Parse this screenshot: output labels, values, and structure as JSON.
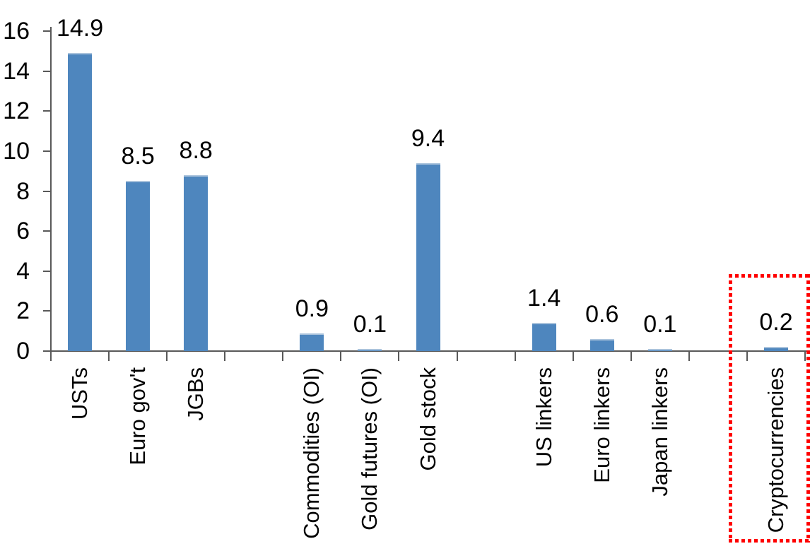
{
  "chart_data": {
    "type": "bar",
    "title": "",
    "xlabel": "",
    "ylabel": "",
    "y_axis": {
      "min": 0,
      "max": 16,
      "tick_step": 2,
      "ticks": [
        16,
        14,
        12,
        10,
        8,
        6,
        4,
        2,
        0
      ]
    },
    "slots_total": 13,
    "grid": "off",
    "legend": "none",
    "bars": [
      {
        "label": "USTs",
        "value": 14.9,
        "slot": 0,
        "highlighted": false
      },
      {
        "label": "Euro gov't",
        "value": 8.5,
        "slot": 1,
        "highlighted": false
      },
      {
        "label": "JGBs",
        "value": 8.8,
        "slot": 2,
        "highlighted": false
      },
      {
        "label": "Commodities (OI)",
        "value": 0.9,
        "slot": 4,
        "highlighted": false
      },
      {
        "label": "Gold futures (OI)",
        "value": 0.1,
        "slot": 5,
        "highlighted": false
      },
      {
        "label": "Gold stock",
        "value": 9.4,
        "slot": 6,
        "highlighted": false
      },
      {
        "label": "US linkers",
        "value": 1.4,
        "slot": 8,
        "highlighted": false
      },
      {
        "label": "Euro linkers",
        "value": 0.6,
        "slot": 9,
        "highlighted": false
      },
      {
        "label": "Japan linkers",
        "value": 0.1,
        "slot": 10,
        "highlighted": false
      },
      {
        "label": "Cryptocurrencies",
        "value": 0.2,
        "slot": 12,
        "highlighted": true
      }
    ],
    "annotation": {
      "type": "red-dotted-rectangle",
      "target": "Cryptocurrencies"
    },
    "colors": {
      "bar_fill": "#4e86be",
      "bar_top_edge": "#aac3dc",
      "axis_line": "#595959",
      "label_text": "#000000",
      "highlight_box": "#ff0000",
      "background": "#ffffff"
    }
  }
}
